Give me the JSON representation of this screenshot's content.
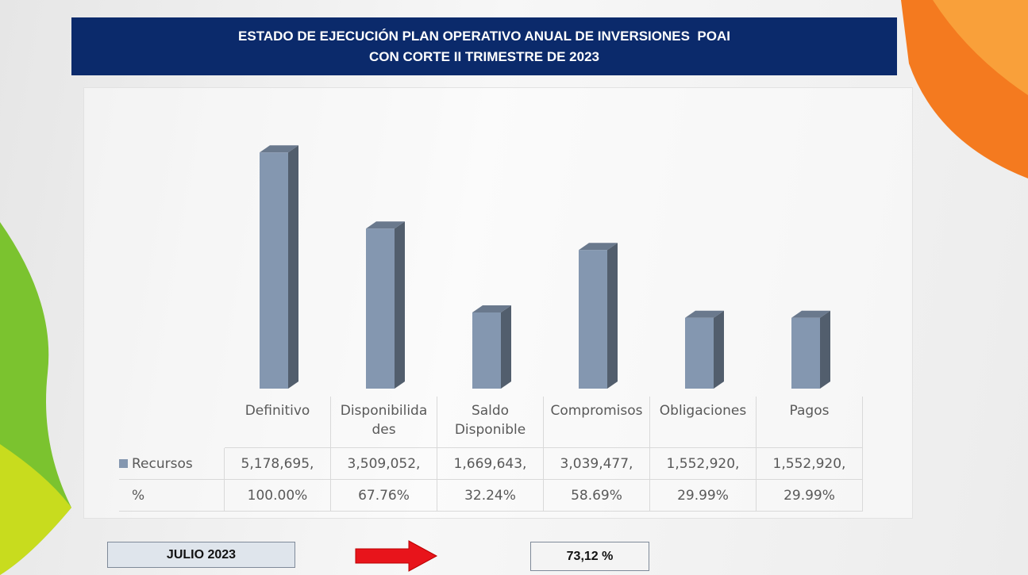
{
  "chart_data": {
    "type": "bar3d",
    "title": "ESTADO DE EJECUCIÓN PLAN OPERATIVO ANUAL DE INVERSIONES  POAI",
    "subtitle": "CON CORTE II TRIMESTRE DE 2023",
    "categories": [
      "Definitivo",
      "Disponibilidades",
      "Saldo Disponible",
      "Compromisos",
      "Obligaciones",
      "Pagos"
    ],
    "series": [
      {
        "name": "Recursos",
        "color": "#8497b0",
        "values": [
          5178695,
          3509052,
          1669643,
          3039477,
          1552920,
          1552920
        ],
        "value_labels": [
          "5,178,695,",
          "3,509,052,",
          "1,669,643,",
          "3,039,477,",
          "1,552,920,",
          "1,552,920,"
        ]
      },
      {
        "name": "%",
        "values": [
          100.0,
          67.76,
          32.24,
          58.69,
          29.99,
          29.99
        ],
        "value_labels": [
          "100.00%",
          "67.76%",
          "32.24%",
          "58.69%",
          "29.99%",
          "29.99%"
        ]
      }
    ],
    "ylim": [
      0,
      6000000
    ]
  },
  "footer": {
    "period": "JULIO 2023",
    "total": "73,12 %"
  }
}
